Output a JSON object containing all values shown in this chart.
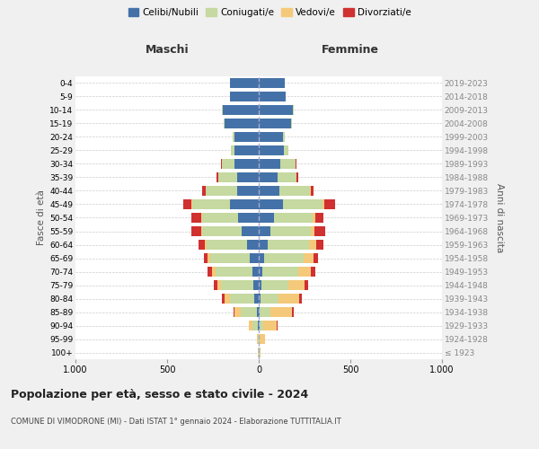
{
  "age_groups": [
    "100+",
    "95-99",
    "90-94",
    "85-89",
    "80-84",
    "75-79",
    "70-74",
    "65-69",
    "60-64",
    "55-59",
    "50-54",
    "45-49",
    "40-44",
    "35-39",
    "30-34",
    "25-29",
    "20-24",
    "15-19",
    "10-14",
    "5-9",
    "0-4"
  ],
  "birth_years": [
    "≤ 1923",
    "1924-1928",
    "1929-1933",
    "1934-1938",
    "1939-1943",
    "1944-1948",
    "1949-1953",
    "1954-1958",
    "1959-1963",
    "1964-1968",
    "1969-1973",
    "1974-1978",
    "1979-1983",
    "1984-1988",
    "1989-1993",
    "1994-1998",
    "1999-2003",
    "2004-2008",
    "2009-2013",
    "2014-2018",
    "2019-2023"
  ],
  "male": {
    "celibi": [
      2,
      2,
      5,
      10,
      25,
      30,
      35,
      50,
      65,
      95,
      115,
      155,
      120,
      120,
      130,
      130,
      130,
      185,
      195,
      155,
      155
    ],
    "coniugati": [
      2,
      5,
      30,
      90,
      130,
      175,
      200,
      215,
      220,
      215,
      195,
      210,
      170,
      100,
      70,
      20,
      10,
      5,
      5,
      0,
      0
    ],
    "vedovi": [
      0,
      5,
      20,
      30,
      30,
      20,
      20,
      15,
      10,
      5,
      5,
      5,
      0,
      0,
      0,
      0,
      0,
      0,
      0,
      0,
      0
    ],
    "divorziati": [
      0,
      0,
      0,
      5,
      15,
      20,
      25,
      20,
      35,
      55,
      55,
      40,
      20,
      10,
      5,
      0,
      0,
      0,
      0,
      0,
      0
    ]
  },
  "female": {
    "nubili": [
      2,
      2,
      5,
      5,
      10,
      15,
      20,
      30,
      50,
      65,
      85,
      130,
      115,
      105,
      120,
      135,
      130,
      175,
      185,
      145,
      140
    ],
    "coniugate": [
      2,
      5,
      20,
      60,
      100,
      145,
      195,
      215,
      225,
      220,
      210,
      220,
      165,
      100,
      80,
      25,
      10,
      5,
      5,
      0,
      0
    ],
    "vedove": [
      5,
      25,
      75,
      115,
      110,
      90,
      70,
      55,
      40,
      20,
      15,
      10,
      5,
      0,
      0,
      0,
      0,
      0,
      0,
      0,
      0
    ],
    "divorziate": [
      0,
      0,
      5,
      10,
      15,
      20,
      25,
      25,
      40,
      60,
      45,
      55,
      15,
      10,
      5,
      0,
      0,
      0,
      0,
      0,
      0
    ]
  },
  "colors": {
    "celibi": "#4472a8",
    "coniugati": "#c5d9a0",
    "vedovi": "#f5c97a",
    "divorziati": "#d03030"
  },
  "xlim": 1000,
  "title": "Popolazione per età, sesso e stato civile - 2024",
  "subtitle": "COMUNE DI VIMODRONE (MI) - Dati ISTAT 1° gennaio 2024 - Elaborazione TUTTITALIA.IT",
  "ylabel_left": "Fasce di età",
  "ylabel_right": "Anni di nascita",
  "xlabel_left": "Maschi",
  "xlabel_right": "Femmine",
  "bg_color": "#f0f0f0",
  "plot_bg": "#ffffff"
}
